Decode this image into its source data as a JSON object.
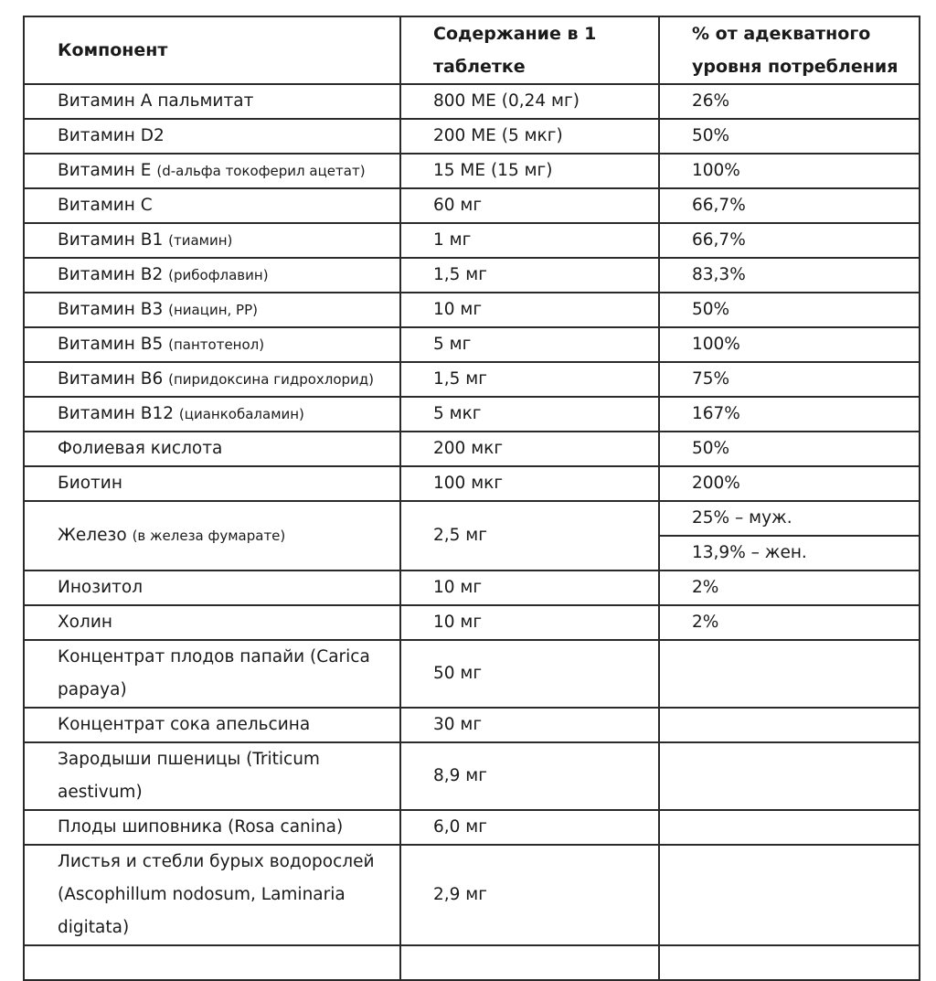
{
  "table": {
    "header": [
      "Компонент",
      "Содержание в 1 таблетке",
      "% от адекватного уровня потребления"
    ],
    "rows": [
      {
        "name": "Витамин А пальмитат",
        "amount": "800 МЕ (0,24 мг)",
        "percent": [
          "26%"
        ]
      },
      {
        "name": "Витамин D2",
        "amount": "200 МЕ (5 мкг)",
        "percent": [
          "50%"
        ]
      },
      {
        "name": "Витамин Е",
        "note": "(d-альфа токоферил ацетат)",
        "amount": "15 МЕ (15 мг)",
        "percent": [
          "100%"
        ]
      },
      {
        "name": "Витамин С",
        "amount": "60 мг",
        "percent": [
          "66,7%"
        ]
      },
      {
        "name": "Витамин В1",
        "note": "(тиамин)",
        "amount": "1 мг",
        "percent": [
          "66,7%"
        ]
      },
      {
        "name": "Витамин В2",
        "note": "(рибофлавин)",
        "amount": "1,5 мг",
        "percent": [
          "83,3%"
        ]
      },
      {
        "name": "Витамин В3",
        "note": "(ниацин, РР)",
        "amount": "10 мг",
        "percent": [
          "50%"
        ]
      },
      {
        "name": "Витамин В5",
        "note": "(пантотенол)",
        "amount": "5 мг",
        "percent": [
          "100%"
        ]
      },
      {
        "name": "Витамин В6",
        "note": "(пиридоксина гидрохлорид)",
        "amount": "1,5 мг",
        "percent": [
          "75%"
        ]
      },
      {
        "name": "Витамин В12",
        "note": "(цианкобаламин)",
        "amount": "5 мкг",
        "percent": [
          "167%"
        ]
      },
      {
        "name": "Фолиевая кислота",
        "amount": "200 мкг",
        "percent": [
          "50%"
        ]
      },
      {
        "name": "Биотин",
        "amount": "100 мкг",
        "percent": [
          "200%"
        ]
      },
      {
        "name": "Железо",
        "note": "(в железа фумарате)",
        "amount": "2,5 мг",
        "percent": [
          "25% – муж.",
          "13,9% – жен."
        ]
      },
      {
        "name": "Инозитол",
        "amount": "10 мг",
        "percent": [
          "2%"
        ]
      },
      {
        "name": "Холин",
        "amount": "10 мг",
        "percent": [
          "2%"
        ]
      },
      {
        "name": "Концентрат плодов папайи (Carica papaya)",
        "amount": "50 мг"
      },
      {
        "name": "Концентрат сока апельсина",
        "amount": "30 мг"
      },
      {
        "name": "Зародыши пшеницы (Triticum aestivum)",
        "amount": "8,9 мг"
      },
      {
        "name": "Плоды шиповника (Rosa canina)",
        "amount": "6,0 мг"
      },
      {
        "name": "Листья и стебли бурых водорослей (Ascophillum nodosum, Laminaria digitata)",
        "amount": "2,9 мг"
      }
    ]
  }
}
